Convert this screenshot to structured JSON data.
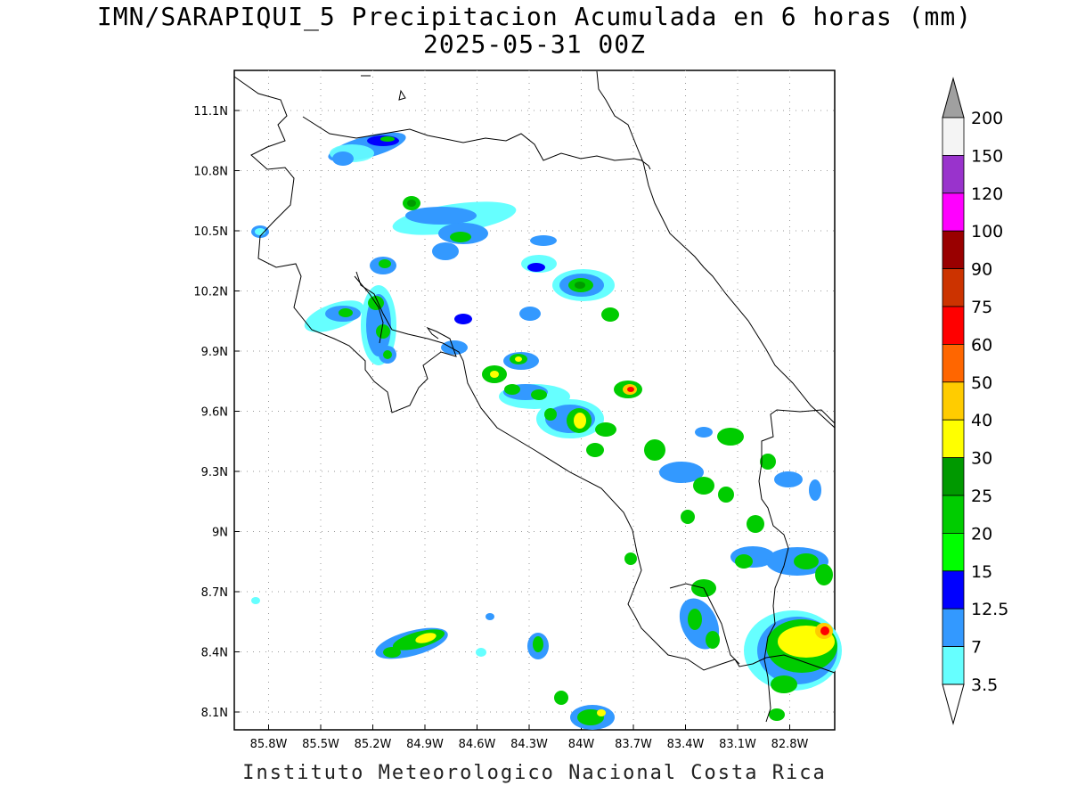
{
  "title": {
    "line1": "IMN/SARAPIQUI_5 Precipitacion Acumulada en 6 horas (mm)",
    "line2": "2025-05-31 00Z"
  },
  "footer": "Instituto Meteorologico Nacional Costa Rica",
  "axes": {
    "lon_ticks": [
      "85.8W",
      "85.5W",
      "85.2W",
      "84.9W",
      "84.6W",
      "84.3W",
      "84W",
      "83.7W",
      "83.4W",
      "83.1W",
      "82.8W"
    ],
    "lat_ticks": [
      "11.1N",
      "10.8N",
      "10.5N",
      "10.2N",
      "9.9N",
      "9.6N",
      "9.3N",
      "9N",
      "8.7N",
      "8.4N",
      "8.1N"
    ]
  },
  "colorbar": {
    "labels": [
      "200",
      "150",
      "120",
      "100",
      "90",
      "75",
      "60",
      "50",
      "40",
      "30",
      "25",
      "20",
      "15",
      "12.5",
      "7",
      "3.5"
    ],
    "colors": [
      "#f4f4f4",
      "#9933cc",
      "#ff00ff",
      "#990000",
      "#cc3300",
      "#ff0000",
      "#ff6600",
      "#ffcc00",
      "#ffff00",
      "#009900",
      "#00cc00",
      "#00ff00",
      "#0000ff",
      "#3399ff",
      "#66ffff"
    ],
    "above_color": "#a0a0a0",
    "below_color": "#ffffff"
  }
}
